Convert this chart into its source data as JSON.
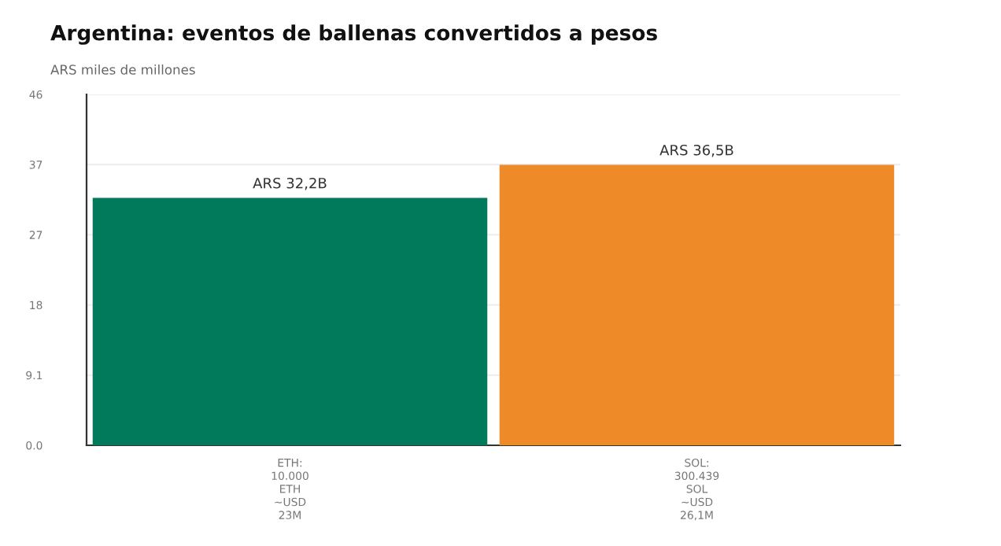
{
  "chart_data": {
    "type": "bar",
    "title": "Argentina: eventos de ballenas convertidos a pesos",
    "ylabel": "ARS miles de millones",
    "categories": [
      "ETH:\n10.000\nETH\n~USD\n23M",
      "SOL:\n300.439\nSOL\n~USD\n26,1M"
    ],
    "values": [
      32.2,
      36.5
    ],
    "colors": [
      "#007a5a",
      "#ee8a28"
    ],
    "value_labels": [
      "ARS 32,2B",
      "ARS 36,5B"
    ],
    "ylim": [
      0,
      45.65
    ],
    "yticks": [
      {
        "value": 0,
        "label": "0.0"
      },
      {
        "value": 9.13,
        "label": "9.1"
      },
      {
        "value": 18.26,
        "label": "18"
      },
      {
        "value": 27.39,
        "label": "27"
      },
      {
        "value": 36.52,
        "label": "37"
      },
      {
        "value": 45.65,
        "label": "46"
      }
    ],
    "grid": "y",
    "legend": false
  }
}
